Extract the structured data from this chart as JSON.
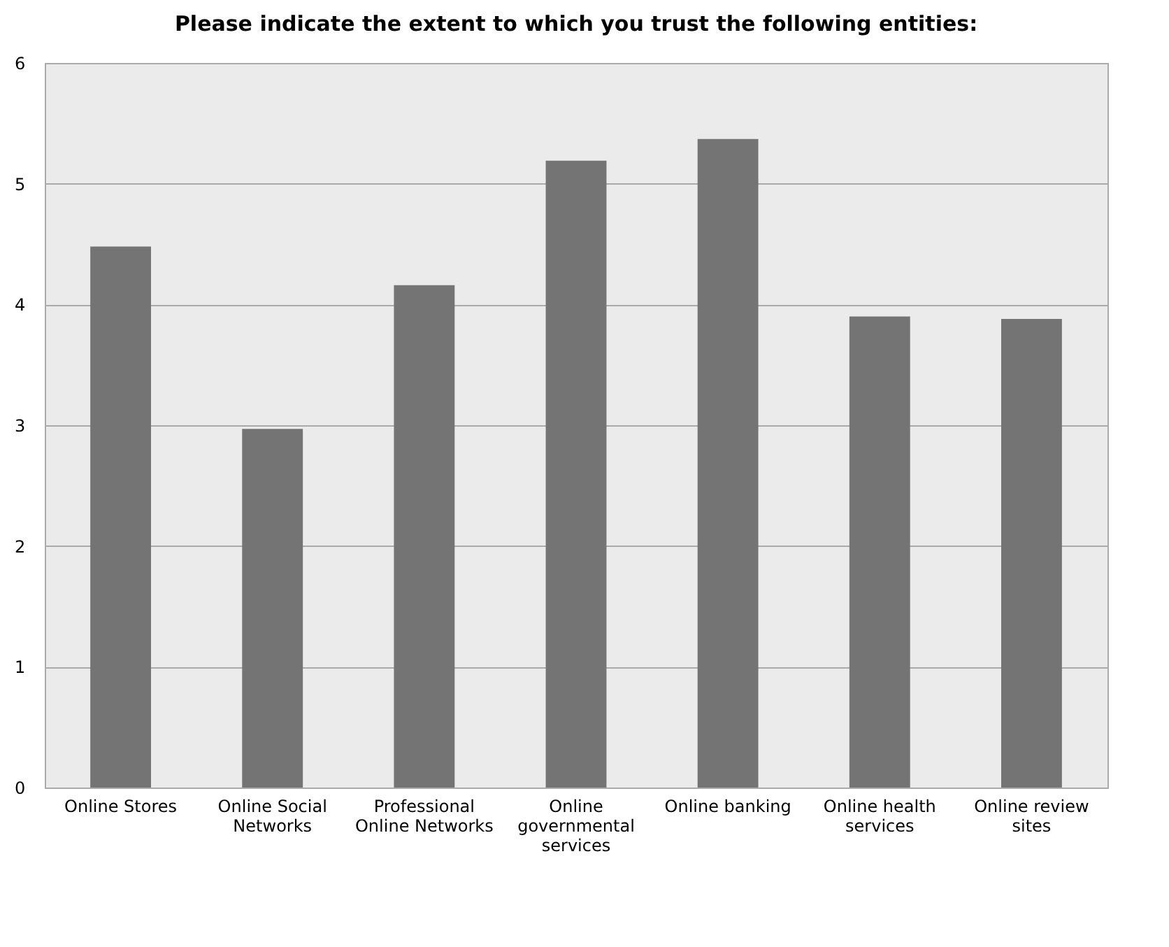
{
  "chart_data": {
    "type": "bar",
    "title": "Please indicate the extent to which you trust the following entities:",
    "categories": [
      "Online Stores",
      "Online Social Networks",
      "Professional Online Networks",
      "Online governmental services",
      "Online banking",
      "Online health services",
      "Online review sites"
    ],
    "values": [
      4.48,
      2.97,
      4.16,
      5.19,
      5.37,
      3.9,
      3.88
    ],
    "color": "#747474",
    "ylim": [
      0,
      6
    ],
    "yticks": [
      0,
      1,
      2,
      3,
      4,
      5,
      6
    ],
    "grid": "y"
  }
}
